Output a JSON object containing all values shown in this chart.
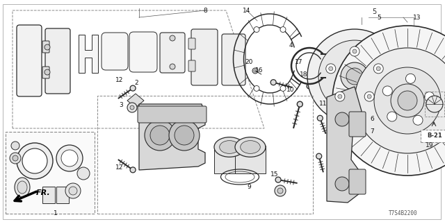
{
  "bg_color": "#ffffff",
  "lc": "#2a2a2a",
  "diagram_code": "T7S4B2200",
  "figsize": [
    6.4,
    3.2
  ],
  "dpi": 100
}
